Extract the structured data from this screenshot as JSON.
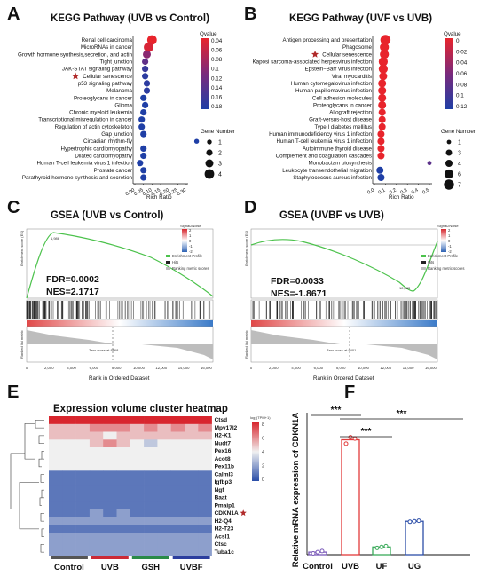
{
  "panels": {
    "A": {
      "label": "A",
      "title": "KEGG Pathway (UVB vs Control)",
      "xlabel": "Rich Ratio",
      "qvalue_title": "Qvalue",
      "qvalue_ticks": [
        "0.04",
        "0.06",
        "0.08",
        "0.1",
        "0.12",
        "0.14",
        "0.16",
        "0.18"
      ],
      "gene_title": "Gene Number",
      "gene_sizes": [
        "1",
        "2",
        "3",
        "4"
      ],
      "xticks": [
        "0.00",
        "0.05",
        "0.10",
        "0.15",
        "0.20",
        "0.25",
        "0.30"
      ],
      "starred": "Cellular senescence"
    },
    "B": {
      "label": "B",
      "title": "KEGG Pathway (UVF vs UVB)",
      "xlabel": "Rich Ratio",
      "qvalue_title": "Qvalue",
      "qvalue_ticks": [
        "0",
        "0.02",
        "0.04",
        "0.06",
        "0.08",
        "0.1",
        "0.12"
      ],
      "gene_title": "Gene Number",
      "gene_sizes": [
        "1",
        "3",
        "4",
        "6",
        "7"
      ],
      "xticks": [
        "0.0",
        "0.1",
        "0.2",
        "0.3",
        "0.4",
        "0.5"
      ],
      "starred": "Cellular senescence"
    },
    "C": {
      "label": "C",
      "title": "GSEA (UVB vs Control)",
      "fdr": "FDR=0.0002",
      "nes": "NES=2.1717",
      "colorbar_title": "Signal2Noise",
      "colorbar_ticks": [
        "2",
        "1",
        "0",
        "-1",
        "-2"
      ],
      "legend": [
        "Enrichment Profile",
        "Hits",
        "Ranking metric scores"
      ],
      "ylabel_top": "Enrichment score (ES)",
      "ylabel_bottom": "Ranked list metric",
      "xlabel": "Rank in Ordered Dataset",
      "zero_cross": "Zero cross at 8168",
      "peak_label": "1,986",
      "xticks": [
        "0",
        "2,000",
        "4,000",
        "6,000",
        "8,000",
        "10,000",
        "12,000",
        "14,000",
        "16,000"
      ]
    },
    "D": {
      "label": "D",
      "title": "GSEA (UVBF vs UVB)",
      "fdr": "FDR=0.0033",
      "nes": "NES=-1.8671",
      "colorbar_title": "Signal2Noise",
      "colorbar_ticks": [
        "2",
        "1",
        "0",
        "-1",
        "-2"
      ],
      "legend": [
        "Enrichment Profile",
        "Hits",
        "Ranking metric scores"
      ],
      "ylabel_top": "Enrichment score (ES)",
      "ylabel_bottom": "Ranked list metric",
      "xlabel": "Rank in Ordered Dataset",
      "zero_cross": "Zero cross at 9401",
      "peak_label": "12,683",
      "xticks": [
        "0",
        "2,000",
        "4,000",
        "6,000",
        "8,000",
        "10,000",
        "12,000",
        "14,000",
        "16,000"
      ]
    },
    "E": {
      "label": "E",
      "title": "Expression volume cluster heatmap",
      "colorbar_title": "log₂(TPM+1)",
      "colorbar_ticks": [
        "8",
        "6",
        "4",
        "2",
        "0"
      ],
      "groups": [
        "Control",
        "UVB",
        "GSH",
        "UVBF"
      ],
      "group_colors": [
        "#555555",
        "#cc2a36",
        "#2a8a48",
        "#2c3e9e"
      ],
      "starred": "CDKN1A"
    },
    "F": {
      "label": "F",
      "ylabel": "Relative mRNA expression of CDKN1A",
      "significance": [
        "***",
        "***",
        "***"
      ]
    }
  },
  "chart_data": [
    {
      "type": "scatter",
      "title": "KEGG Pathway (UVB vs Control)",
      "xlabel": "Rich Ratio",
      "ylabel": "",
      "xlim": [
        0,
        0.3
      ],
      "categories": [
        "Renal cell carcinoma",
        "MicroRNAs in cancer",
        "Growth hormone synthesis,secretion, and actin",
        "Tight junction",
        "JAK-STAT signaling pathway",
        "Cellular senescence",
        "p53 signaling pathway",
        "Melanoma",
        "Proteoglycans in cancer",
        "Glioma",
        "Chronic myeloid leukemia",
        "Transcriptional misregulation in cancer",
        "Regulation of actin cytoskeleton",
        "Gap junction",
        "Circadian rhythm-fly",
        "Hypertrophic cardiomyopathy",
        "Dilated cardiomyopathy",
        "Human T-cell leukemia virus 1 infection",
        "Prostate cancer",
        "Parathyroid hormone synthesis and secretion"
      ],
      "rich_ratio": [
        0.1,
        0.08,
        0.07,
        0.06,
        0.06,
        0.06,
        0.07,
        0.07,
        0.05,
        0.06,
        0.05,
        0.04,
        0.04,
        0.05,
        0.36,
        0.05,
        0.05,
        0.03,
        0.05,
        0.05
      ],
      "gene_number": [
        4,
        4,
        3,
        2,
        2,
        2,
        2,
        2,
        2,
        2,
        2,
        2,
        2,
        2,
        1,
        2,
        2,
        2,
        2,
        2
      ],
      "qvalue": [
        0.04,
        0.05,
        0.1,
        0.13,
        0.16,
        0.17,
        0.17,
        0.17,
        0.18,
        0.18,
        0.18,
        0.18,
        0.18,
        0.18,
        0.18,
        0.18,
        0.18,
        0.18,
        0.18,
        0.18
      ]
    },
    {
      "type": "scatter",
      "title": "KEGG Pathway (UVF vs UVB)",
      "xlabel": "Rich Ratio",
      "ylabel": "",
      "xlim": [
        0,
        0.5
      ],
      "categories": [
        "Antigen processing and presentation",
        "Phagosome",
        "Cellular senescence",
        "Kaposi sarcoma-associated herpesvirus infection",
        "Epstein−Barr virus infection",
        "Viral myocarditis",
        "Human cytomegalovirus infection",
        "Human papillomavirus infection",
        "Cell adhesion molecules",
        "Proteoglycans in cancer",
        "Allograft rejection",
        "Graft-versus-host disease",
        "Type I diabetes mellitus",
        "Human immunodeficiency virus 1 infection",
        "Human T-cell leukemia virus 1 infection",
        "Autoimmune thyroid disease",
        "Complement and coagulation cascades",
        "Monobactam biosynthesis",
        "Leukocyte transendothelial migration",
        "Staphylococcus aureus infection"
      ],
      "rich_ratio": [
        0.1,
        0.09,
        0.09,
        0.08,
        0.08,
        0.08,
        0.07,
        0.07,
        0.07,
        0.07,
        0.07,
        0.07,
        0.07,
        0.06,
        0.06,
        0.06,
        0.06,
        0.5,
        0.05,
        0.06
      ],
      "gene_number": [
        7,
        6,
        6,
        6,
        6,
        5,
        5,
        5,
        5,
        5,
        4,
        4,
        4,
        4,
        4,
        4,
        4,
        1,
        4,
        4
      ],
      "qvalue": [
        0.0,
        0.0,
        0.0,
        0.0,
        0.0,
        0.0,
        0.0,
        0.0,
        0.0,
        0.0,
        0.0,
        0.0,
        0.0,
        0.0,
        0.0,
        0.0,
        0.0,
        0.08,
        0.12,
        0.12
      ]
    },
    {
      "type": "heatmap",
      "title": "Expression volume cluster heatmap",
      "rows": [
        "Ctsd",
        "Mpv17l2",
        "H2-K1",
        "Nudt7",
        "Pex16",
        "Acot8",
        "Pex11b",
        "Calml3",
        "Igfbp3",
        "Ngf",
        "Baat",
        "Pmaip1",
        "CDKN1A",
        "H2-Q4",
        "H2-T23",
        "Acsl1",
        "Ctsc",
        "Tuba1c"
      ],
      "columns": [
        "Control1",
        "Control2",
        "Control3",
        "UVB1",
        "UVB2",
        "UVB3",
        "GSH1",
        "GSH2",
        "GSH3",
        "UVBF1",
        "UVBF2",
        "UVBF3"
      ],
      "values": [
        [
          8,
          8,
          8,
          8,
          8,
          8,
          8,
          8,
          8,
          8,
          8,
          8
        ],
        [
          5,
          5,
          5,
          6,
          6,
          6,
          5,
          6,
          5,
          6,
          5,
          6
        ],
        [
          5,
          5,
          5,
          5,
          4,
          5,
          5,
          5,
          5,
          5,
          5,
          5
        ],
        [
          4,
          4,
          4,
          5,
          6,
          5,
          4,
          3,
          4,
          4,
          4,
          4
        ],
        [
          4,
          4,
          4,
          4,
          4,
          4,
          4,
          4,
          4,
          4,
          4,
          4
        ],
        [
          4,
          4,
          4,
          4,
          4,
          4,
          4,
          4,
          4,
          4,
          4,
          4
        ],
        [
          4,
          4,
          4,
          4,
          4,
          4,
          4,
          4,
          4,
          4,
          4,
          4
        ],
        [
          1,
          1,
          1,
          1,
          1,
          1,
          1,
          1,
          1,
          1,
          1,
          1
        ],
        [
          1,
          1,
          1,
          1,
          1,
          1,
          1,
          1,
          1,
          1,
          1,
          1
        ],
        [
          1,
          1,
          1,
          1,
          1,
          1,
          1,
          1,
          1,
          1,
          1,
          1
        ],
        [
          1,
          1,
          1,
          1,
          1,
          1,
          1,
          1,
          1,
          1,
          1,
          1
        ],
        [
          1,
          1,
          1,
          1,
          1,
          1,
          1,
          1,
          1,
          1,
          1,
          1
        ],
        [
          1,
          1,
          1,
          2,
          1,
          2,
          1,
          1,
          1,
          1,
          1,
          1
        ],
        [
          2,
          2,
          2,
          2,
          2,
          2,
          2,
          2,
          2,
          2,
          2,
          2
        ],
        [
          1,
          1,
          1,
          1,
          1,
          1,
          1,
          1,
          1,
          1,
          1,
          1
        ],
        [
          2,
          2,
          2,
          2,
          2,
          2,
          2,
          2,
          2,
          2,
          2,
          2
        ],
        [
          2,
          2,
          2,
          2,
          2,
          2,
          2,
          2,
          2,
          2,
          2,
          2
        ],
        [
          2,
          2,
          2,
          2,
          2,
          2,
          2,
          2,
          2,
          2,
          2,
          2
        ]
      ],
      "colorbar_title": "log₂(TPM+1)",
      "range": [
        0,
        8
      ]
    },
    {
      "type": "bar",
      "title": "",
      "xlabel": "",
      "ylabel": "Relative mRNA expression of CDKN1A",
      "categories": [
        "Control",
        "UVB",
        "UF",
        "UG"
      ],
      "values": [
        1.0,
        44.5,
        3.0,
        13.0
      ],
      "points": [
        [
          0.5,
          1.0,
          1.4
        ],
        [
          43,
          45.5,
          45
        ],
        [
          2.6,
          3.0,
          3.3
        ],
        [
          12.8,
          13.0,
          13.2
        ]
      ],
      "ylim": [
        0,
        55
      ],
      "colors": [
        "#7a5ab8",
        "#e23a3a",
        "#3aaa5a",
        "#2c4ea8"
      ],
      "significance": [
        [
          "Control",
          "UVB",
          "***"
        ],
        [
          "UVB",
          "UF",
          "***"
        ],
        [
          "UVB",
          "UG",
          "***"
        ]
      ]
    }
  ]
}
